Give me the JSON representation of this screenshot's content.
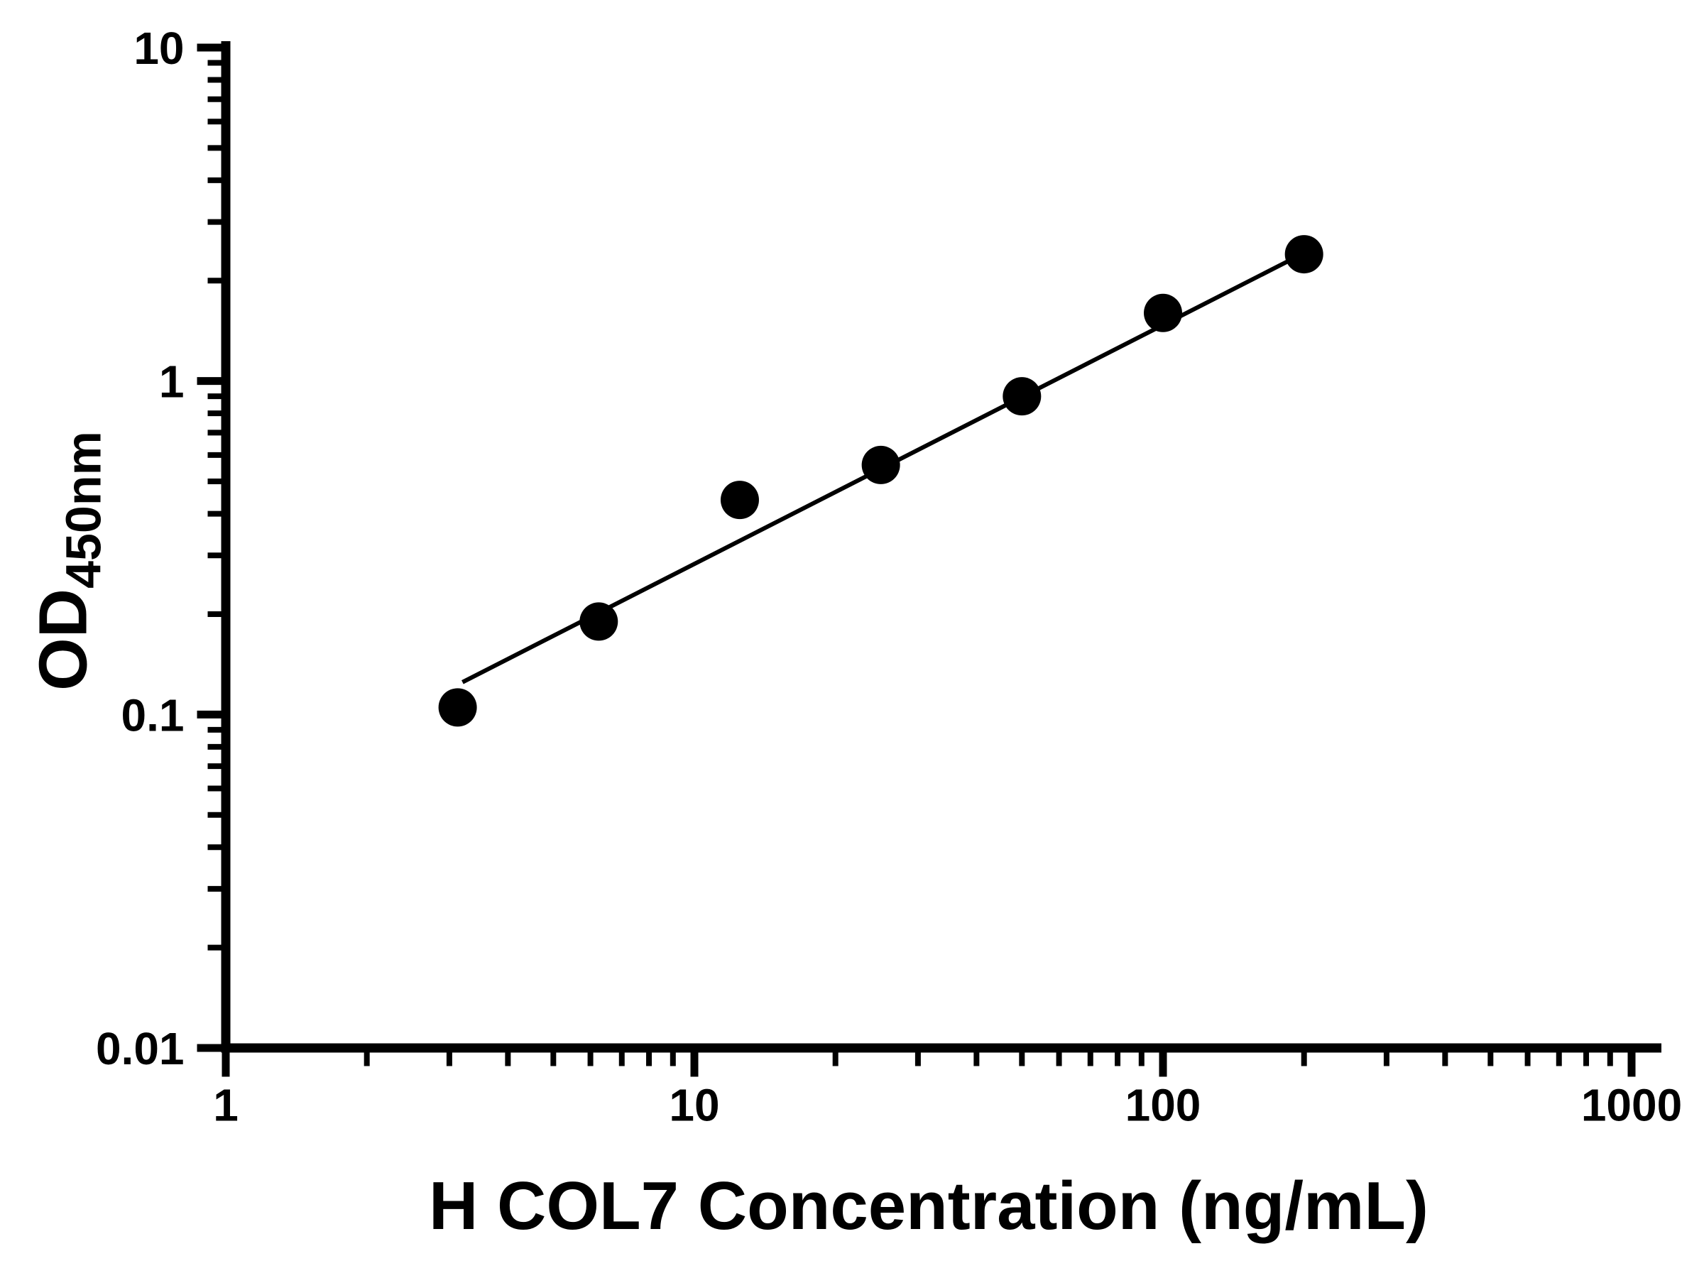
{
  "figure": {
    "background": "#ffffff"
  },
  "chart_data": {
    "type": "scatter",
    "title": "",
    "xlabel": "H COL7 Concentration (ng/mL)",
    "ylabel": "OD450nm",
    "ylabel_main": "OD",
    "ylabel_sub": "450nm",
    "x_scale": "log",
    "y_scale": "log",
    "xlim": [
      1,
      1000
    ],
    "ylim": [
      0.01,
      10
    ],
    "x_ticks": [
      1,
      10,
      100,
      1000
    ],
    "x_tick_labels": [
      "1",
      "10",
      "100",
      "1000"
    ],
    "y_ticks": [
      0.01,
      0.1,
      1,
      10
    ],
    "y_tick_labels": [
      "0.01",
      "0.1",
      "1",
      "10"
    ],
    "grid": false,
    "legend": null,
    "series": [
      {
        "name": "standard-curve-points",
        "type": "scatter",
        "x": [
          3.125,
          6.25,
          12.5,
          25,
          50,
          100,
          200
        ],
        "y": [
          0.105,
          0.19,
          0.44,
          0.56,
          0.9,
          1.6,
          2.4
        ]
      },
      {
        "name": "fit-line",
        "type": "line",
        "x": [
          3.2,
          200
        ],
        "y": [
          0.125,
          2.42
        ]
      }
    ],
    "marker_color": "#000000",
    "line_color": "#000000",
    "axis_color": "#000000"
  }
}
